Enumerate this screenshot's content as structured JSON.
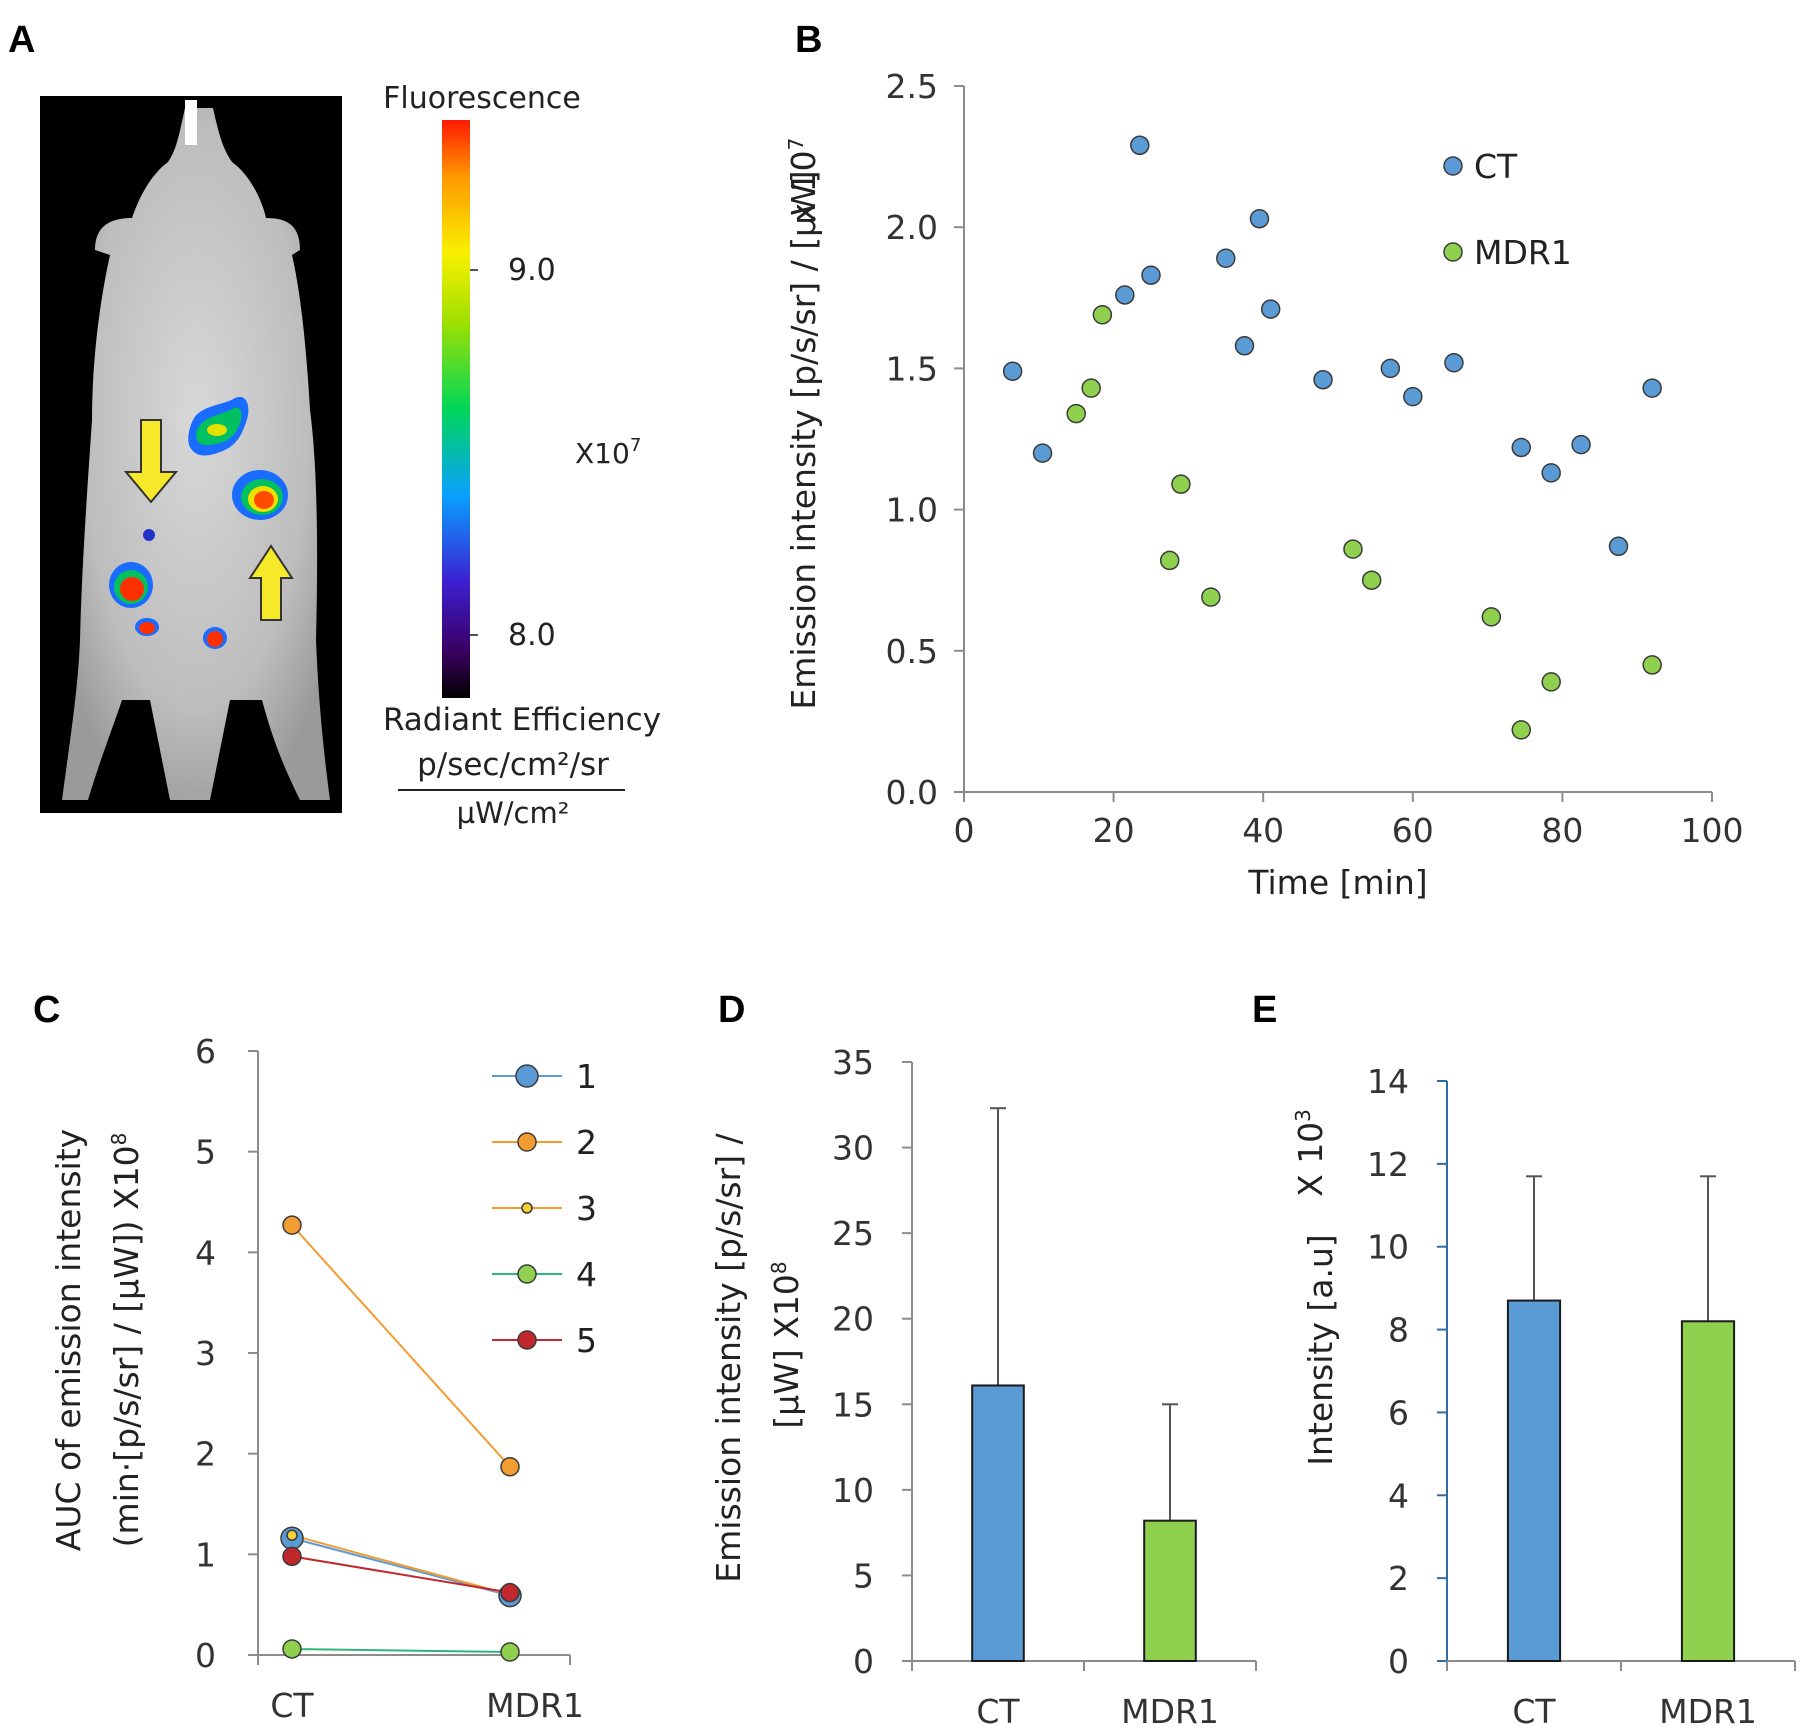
{
  "panels": {
    "A": {
      "label": "A",
      "colorbar": {
        "title": "Fluorescence",
        "tick_high": "9.0",
        "tick_low": "8.0",
        "multiplier_base": "X10",
        "multiplier_exp": "7",
        "unit_line1": "Radiant Efficiency",
        "unit_numerator": "p/sec/cm²/sr",
        "unit_denominator": "µW/cm²"
      },
      "image_description_icon": "mouse-fluorescence-image",
      "arrow_color": "#f5e92a"
    },
    "B": {
      "label": "B"
    },
    "C": {
      "label": "C"
    },
    "D": {
      "label": "D"
    },
    "E": {
      "label": "E"
    }
  },
  "colors": {
    "CT": "#5b9bd5",
    "MDR1": "#8fd14f",
    "axis": "#8c8c8c"
  },
  "chart_data": [
    {
      "id": "B",
      "type": "scatter",
      "title": "",
      "xlabel": "Time [min]",
      "ylabel": "Emission intensity [p/s/sr] / [µW]",
      "ylabel_multiplier_base": "x 10",
      "ylabel_multiplier_exp": "7",
      "xlim": [
        0,
        100
      ],
      "ylim": [
        0,
        2.5
      ],
      "xticks": [
        0,
        20,
        40,
        60,
        80,
        100
      ],
      "xtick_labels": [
        "0",
        "20",
        "40",
        "60",
        "80",
        "100"
      ],
      "yticks": [
        0,
        0.5,
        1.0,
        1.5,
        2.0,
        2.5
      ],
      "ytick_labels": [
        "0.0",
        "0.5",
        "1.0",
        "1.5",
        "2.0",
        "2.5"
      ],
      "legend": "top-right",
      "series": [
        {
          "name": "CT",
          "color": "#5b9bd5",
          "points": [
            [
              6.5,
              1.49
            ],
            [
              10.5,
              1.2
            ],
            [
              21.5,
              1.76
            ],
            [
              23.5,
              2.29
            ],
            [
              25,
              1.83
            ],
            [
              35,
              1.89
            ],
            [
              37.5,
              1.58
            ],
            [
              39.5,
              2.03
            ],
            [
              41,
              1.71
            ],
            [
              48,
              1.46
            ],
            [
              57,
              1.5
            ],
            [
              60,
              1.4
            ],
            [
              65.5,
              1.52
            ],
            [
              74.5,
              1.22
            ],
            [
              78.5,
              1.13
            ],
            [
              82.5,
              1.23
            ],
            [
              87.5,
              0.87
            ],
            [
              92,
              1.43
            ]
          ]
        },
        {
          "name": "MDR1",
          "color": "#8fd14f",
          "points": [
            [
              15,
              1.34
            ],
            [
              17,
              1.43
            ],
            [
              18.5,
              1.69
            ],
            [
              27.5,
              0.82
            ],
            [
              29,
              1.09
            ],
            [
              33,
              0.69
            ],
            [
              52,
              0.86
            ],
            [
              54.5,
              0.75
            ],
            [
              70.5,
              0.62
            ],
            [
              74.5,
              0.22
            ],
            [
              78.5,
              0.39
            ],
            [
              92,
              0.45
            ]
          ]
        }
      ]
    },
    {
      "id": "C",
      "type": "line",
      "title": "",
      "xlabel": "",
      "ylabel_line1": "AUC of emission intensity",
      "ylabel_line2": "(min·[p/s/sr] / [µW]) X10",
      "ylabel_exp": "8",
      "categories": [
        "CT",
        "MDR1"
      ],
      "ylim": [
        0,
        6
      ],
      "yticks": [
        0,
        1,
        2,
        3,
        4,
        5,
        6
      ],
      "ytick_labels": [
        "0",
        "1",
        "2",
        "3",
        "4",
        "5",
        "6"
      ],
      "legend": "top-right",
      "series": [
        {
          "name": "1",
          "color": "#5b9bd5",
          "values": [
            1.16,
            0.59
          ],
          "size": 11
        },
        {
          "name": "2",
          "color": "#f39c32",
          "values": [
            4.27,
            1.87
          ],
          "size": 9
        },
        {
          "name": "3",
          "color": "#f5d033",
          "line_color": "#f39c32",
          "values": [
            1.19,
            0.6
          ],
          "size": 5
        },
        {
          "name": "4",
          "color": "#8fd14f",
          "line_color": "#2fb67a",
          "values": [
            0.06,
            0.03
          ],
          "size": 9
        },
        {
          "name": "5",
          "color": "#c0282d",
          "values": [
            0.98,
            0.62
          ],
          "size": 9
        }
      ]
    },
    {
      "id": "D",
      "type": "bar",
      "title": "",
      "ylabel_line1": "Emission intensity [p/s/sr] /",
      "ylabel_line2": "[µW] X10",
      "ylabel_exp": "8",
      "categories": [
        "CT",
        "MDR1"
      ],
      "values": [
        16.1,
        8.2
      ],
      "errors": [
        16.2,
        6.8
      ],
      "colors": [
        "#5b9bd5",
        "#8fd14f"
      ],
      "ylim": [
        0,
        35
      ],
      "yticks": [
        0,
        5,
        10,
        15,
        20,
        25,
        30,
        35
      ],
      "ytick_labels": [
        "0",
        "5",
        "10",
        "15",
        "20",
        "25",
        "30",
        "35"
      ]
    },
    {
      "id": "E",
      "type": "bar",
      "title": "",
      "ylabel": "Intensity [a.u]",
      "ylabel_multiplier_base": "X 10",
      "ylabel_multiplier_exp": "3",
      "categories": [
        "CT",
        "MDR1"
      ],
      "values": [
        8.7,
        8.2
      ],
      "errors": [
        3.0,
        3.5
      ],
      "colors": [
        "#5b9bd5",
        "#8fd14f"
      ],
      "ylim": [
        0,
        14
      ],
      "yticks": [
        0,
        2,
        4,
        6,
        8,
        10,
        12,
        14
      ],
      "ytick_labels": [
        "0",
        "2",
        "4",
        "6",
        "8",
        "10",
        "12",
        "14"
      ]
    }
  ]
}
